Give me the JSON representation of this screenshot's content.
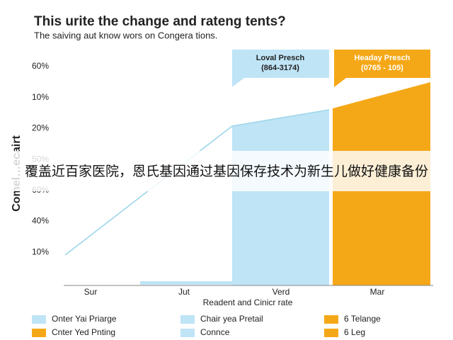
{
  "title": "This urite the change and rateng tents?",
  "subtitle": "The saiving aut know wors on Congera tions.",
  "y_axis_title": "Comel…ecairt",
  "y_labels": [
    "60%",
    "10%",
    "20%",
    "50%",
    "60%",
    "40%",
    "10%"
  ],
  "x_axis_title": "Readent and Cinicr rate",
  "x_labels": [
    "Sur",
    "Jut",
    "Verd",
    "Mar"
  ],
  "callouts": [
    {
      "title": "Loval Presch",
      "range": "(864-3174)"
    },
    {
      "title": "Headay Presch",
      "range": "(0765 - 105)"
    }
  ],
  "legend": [
    {
      "name": "Onter Yai Priarge",
      "color": "#bfe4f6"
    },
    {
      "name": "Chair yea Pretail",
      "color": "#bfe4f6"
    },
    {
      "name": "6 Telange",
      "color": "#f5a817"
    },
    {
      "name": "Cnter Yed Pnting",
      "color": "#f5a817"
    },
    {
      "name": "Connce",
      "color": "#bfe4f6"
    },
    {
      "name": "6 Leg",
      "color": "#f5a817"
    }
  ],
  "overlay_caption": "覆盖近百家医院，恩氏基因通过基因保存技术为新生儿做好健康备份"
}
